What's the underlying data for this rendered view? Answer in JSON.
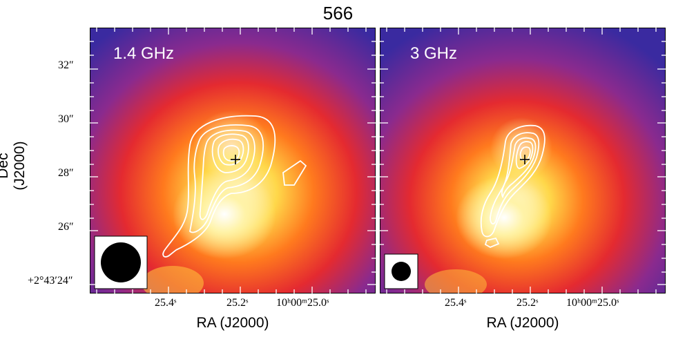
{
  "title": "566",
  "axes": {
    "ylabel": "Dec (J2000)",
    "xlabel": "RA (J2000)",
    "ytick_labels": [
      "32″",
      "30″",
      "28″",
      "26″",
      "+2°43′24″"
    ],
    "xtick_labels": [
      "25.4ˢ",
      "25.2ˢ",
      "10ʰ00ᵐ25.0ˢ"
    ]
  },
  "panels": [
    {
      "label": "1.4 GHz",
      "beam": "large"
    },
    {
      "label": "3 GHz",
      "beam": "small"
    }
  ],
  "colors": {
    "background_low": "#3a2aa0",
    "mid": "#e8282a",
    "high": "#fff6d0",
    "contours": "#ffffff",
    "marker": "#000000"
  },
  "marker": "cross"
}
